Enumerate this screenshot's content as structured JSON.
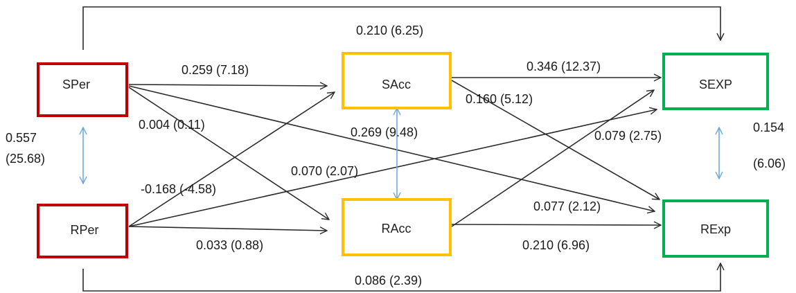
{
  "colors": {
    "perception": "#c00000",
    "acceptance": "#ffc000",
    "expectation": "#00b050",
    "arrow": "#2b2b2b",
    "correlation": "#6fa8dc"
  },
  "nodes": {
    "sper": "SPer",
    "rper": "RPer",
    "sacc": "SAcc",
    "racc": "RAcc",
    "sexp": "SEXP",
    "rexp": "RExp"
  },
  "paths": {
    "sper_sexp": "0.210 (6.25)",
    "sper_sacc": "0.259 (7.18)",
    "sper_racc": "0.004 (0.11)",
    "sper_rexp": "0.077 (2.12)",
    "rper_sacc": "-0.168 (-4.58)",
    "rper_sexp": "0.070 (2.07)",
    "rper_racc": "0.033 (0.88)",
    "rper_rexp": "0.086 (2.39)",
    "sacc_sexp": "0.346 (12.37)",
    "sacc_rexp": "0.160 (5.12)",
    "racc_sexp": "0.079 (2.75)",
    "racc_rexp": "0.210 (6.96)",
    "acc_corr": "0.269 (9.48)"
  },
  "correlations": {
    "per_corr_value": "0.557",
    "per_corr_t": "(25.68)",
    "exp_corr_value": "0.154",
    "exp_corr_t": "(6.06)"
  }
}
